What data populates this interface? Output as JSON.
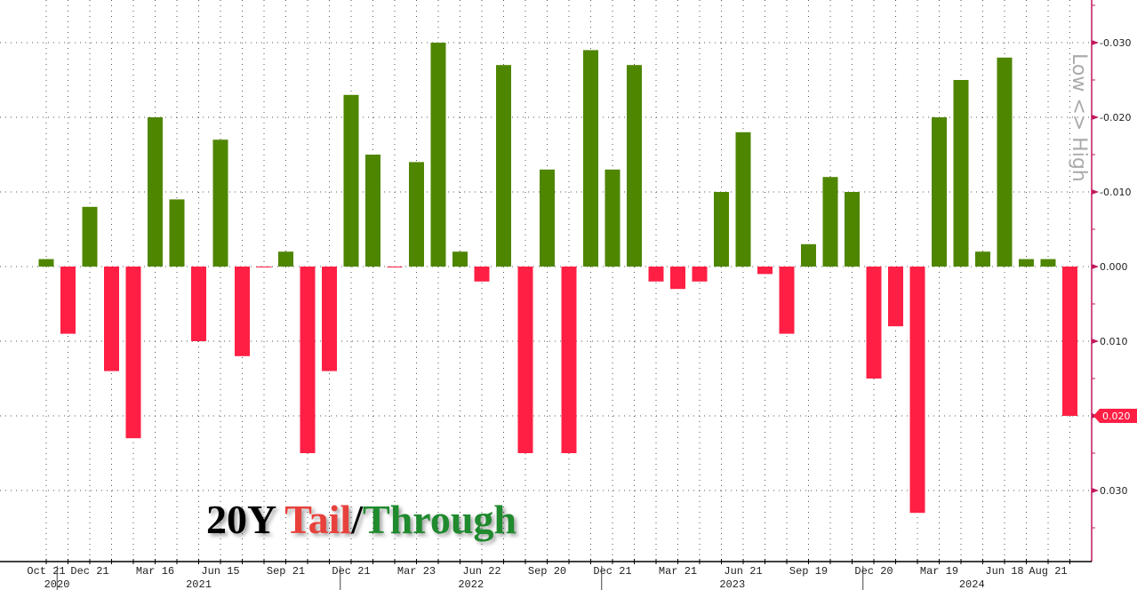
{
  "chart_data": {
    "type": "bar",
    "title_parts": [
      {
        "text": "20Y ",
        "color": "#000000"
      },
      {
        "text": "Tail",
        "color": "#e8413c"
      },
      {
        "text": "/",
        "color": "#000000"
      },
      {
        "text": "Through",
        "color": "#1f8a2e"
      }
    ],
    "side_label": "Low <> High",
    "values": [
      -0.001,
      0.009,
      -0.008,
      0.014,
      0.023,
      -0.02,
      -0.009,
      0.01,
      -0.017,
      0.012,
      0.0,
      -0.002,
      0.025,
      0.014,
      -0.023,
      -0.015,
      0.0,
      -0.014,
      -0.03,
      -0.002,
      0.002,
      -0.027,
      0.025,
      -0.013,
      0.025,
      -0.029,
      -0.013,
      -0.027,
      0.002,
      0.003,
      0.002,
      -0.01,
      -0.018,
      0.001,
      0.009,
      -0.003,
      -0.012,
      -0.01,
      0.015,
      0.008,
      0.033,
      -0.02,
      -0.025,
      -0.002,
      -0.028,
      -0.001,
      -0.001,
      0.02
    ],
    "ylim": [
      -0.036,
      0.039
    ],
    "y_inverted": true,
    "y_ticks": [
      -0.03,
      -0.02,
      -0.01,
      0.0,
      0.01,
      0.02,
      0.03
    ],
    "y_tick_labels": [
      "-0.030",
      "-0.020",
      "-0.010",
      "0.000",
      "0.010",
      "0.020",
      "0.030"
    ],
    "x_ticks": [
      {
        "bar": 0,
        "label": "Oct 21"
      },
      {
        "bar": 2,
        "label": "Dec 21"
      },
      {
        "bar": 5,
        "label": "Mar 16"
      },
      {
        "bar": 8,
        "label": "Jun 15"
      },
      {
        "bar": 11,
        "label": "Sep 21"
      },
      {
        "bar": 14,
        "label": "Dec 21"
      },
      {
        "bar": 17,
        "label": "Mar 23"
      },
      {
        "bar": 20,
        "label": "Jun 22"
      },
      {
        "bar": 23,
        "label": "Sep 20"
      },
      {
        "bar": 26,
        "label": "Dec 21"
      },
      {
        "bar": 29,
        "label": "Mar 21"
      },
      {
        "bar": 32,
        "label": "Jun 21"
      },
      {
        "bar": 35,
        "label": "Sep 19"
      },
      {
        "bar": 38,
        "label": "Dec 20"
      },
      {
        "bar": 41,
        "label": "Mar 19"
      },
      {
        "bar": 44,
        "label": "Jun 18"
      },
      {
        "bar": 46,
        "label": "Aug 21"
      }
    ],
    "years": [
      {
        "label": "2020",
        "from": 0,
        "to": 1
      },
      {
        "label": "2021",
        "from": 1,
        "to": 14
      },
      {
        "label": "2022",
        "from": 14,
        "to": 26
      },
      {
        "label": "2023",
        "from": 26,
        "to": 38
      },
      {
        "label": "2024",
        "from": 38,
        "to": 48
      }
    ],
    "last_value_label": "0.020",
    "grid": true,
    "colors": {
      "positive": "#ff1f44",
      "negative": "#4f8600",
      "axis": "#c2185b",
      "label_badge": "#ff1f44"
    }
  }
}
